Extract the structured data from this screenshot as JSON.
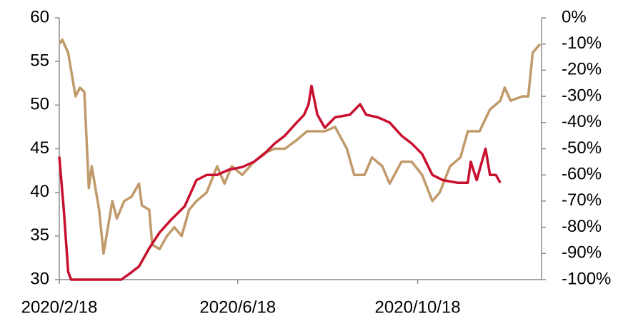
{
  "chart_data": {
    "type": "line",
    "xlim": [
      "2020/2/18",
      "2021/1/10"
    ],
    "xticks": [
      "2020/2/18",
      "2020/6/18",
      "2020/10/18"
    ],
    "ylim": [
      30,
      60
    ],
    "yticks": [
      30,
      35,
      40,
      45,
      50,
      55,
      60
    ],
    "y2lim": [
      -100,
      0
    ],
    "y2ticks": [
      {
        "value": -100,
        "label": "-100%"
      },
      {
        "value": -90,
        "label": "-90%"
      },
      {
        "value": -80,
        "label": "-80%"
      },
      {
        "value": -70,
        "label": "-70%"
      },
      {
        "value": -60,
        "label": "-60%"
      },
      {
        "value": -50,
        "label": "-50%"
      },
      {
        "value": -40,
        "label": "-40%"
      },
      {
        "value": -30,
        "label": "-30%"
      },
      {
        "value": -20,
        "label": "-20%"
      },
      {
        "value": -10,
        "label": "-10%"
      },
      {
        "value": 0,
        "label": "0%"
      }
    ],
    "series": [
      {
        "color": "#c19a6b",
        "axis": "y",
        "x": [
          "2020/2/18",
          "2020/2/20",
          "2020/2/24",
          "2020/2/29",
          "2020/3/3",
          "2020/3/6",
          "2020/3/9",
          "2020/3/11",
          "2020/3/16",
          "2020/3/19",
          "2020/3/22",
          "2020/3/25",
          "2020/3/28",
          "2020/4/2",
          "2020/4/7",
          "2020/4/12",
          "2020/4/14",
          "2020/4/19",
          "2020/4/21",
          "2020/4/26",
          "2020/5/1",
          "2020/5/6",
          "2020/5/11",
          "2020/5/16",
          "2020/5/21",
          "2020/5/28",
          "2020/6/4",
          "2020/6/9",
          "2020/6/14",
          "2020/6/21",
          "2020/6/29",
          "2020/7/6",
          "2020/7/13",
          "2020/7/20",
          "2020/7/28",
          "2020/8/4",
          "2020/8/9",
          "2020/8/16",
          "2020/8/23",
          "2020/8/31",
          "2020/9/5",
          "2020/9/12",
          "2020/9/17",
          "2020/9/24",
          "2020/9/29",
          "2020/10/7",
          "2020/10/14",
          "2020/10/21",
          "2020/10/28",
          "2020/11/2",
          "2020/11/9",
          "2020/11/16",
          "2020/11/21",
          "2020/11/29",
          "2020/12/6",
          "2020/12/13",
          "2020/12/16",
          "2020/12/20",
          "2020/12/28",
          "2021/1/1",
          "2021/1/4",
          "2021/1/9"
        ],
        "values": [
          57,
          57.5,
          56,
          51,
          52,
          51.5,
          40.5,
          43,
          38,
          33,
          36,
          39,
          37,
          39,
          39.5,
          41,
          38.5,
          38,
          34,
          33.5,
          35,
          36,
          35,
          38,
          39,
          40,
          43,
          41,
          43,
          42,
          43.5,
          44.5,
          45,
          45,
          46,
          47,
          47,
          47,
          47.5,
          45,
          42,
          42,
          44,
          43,
          41,
          43.5,
          43.5,
          42,
          39,
          40,
          43,
          44,
          47,
          47,
          49.5,
          50.5,
          52,
          50.5,
          51,
          51,
          56,
          57
        ]
      },
      {
        "color": "#c8102e",
        "axis": "y2",
        "x": [
          "2020/2/18",
          "2020/2/21",
          "2020/2/24",
          "2020/2/26",
          "2020/3/31",
          "2020/4/5",
          "2020/4/12",
          "2020/4/19",
          "2020/4/26",
          "2020/5/4",
          "2020/5/13",
          "2020/5/21",
          "2020/5/28",
          "2020/6/4",
          "2020/6/12",
          "2020/6/21",
          "2020/6/29",
          "2020/7/6",
          "2020/7/13",
          "2020/7/20",
          "2020/7/28",
          "2020/8/2",
          "2020/8/5",
          "2020/8/7",
          "2020/8/11",
          "2020/8/16",
          "2020/8/23",
          "2020/9/2",
          "2020/9/9",
          "2020/9/13",
          "2020/9/21",
          "2020/9/29",
          "2020/10/7",
          "2020/10/14",
          "2020/10/21",
          "2020/10/28",
          "2020/11/4",
          "2020/11/14",
          "2020/11/21",
          "2020/11/23",
          "2020/11/27",
          "2020/12/3",
          "2020/12/6",
          "2020/12/10",
          "2020/12/13"
        ],
        "values": [
          -53,
          -73,
          -97,
          -100,
          -100,
          -98,
          -95,
          -88,
          -82,
          -77,
          -72,
          -62,
          -60,
          -60,
          -58,
          -57,
          -55,
          -52,
          -48,
          -45,
          -40,
          -37,
          -33,
          -26,
          -37,
          -42,
          -38,
          -37,
          -33,
          -37,
          -38,
          -40,
          -45,
          -48,
          -52,
          -60,
          -62,
          -63,
          -63,
          -55,
          -62,
          -50,
          -60,
          -60,
          -63
        ]
      }
    ]
  }
}
